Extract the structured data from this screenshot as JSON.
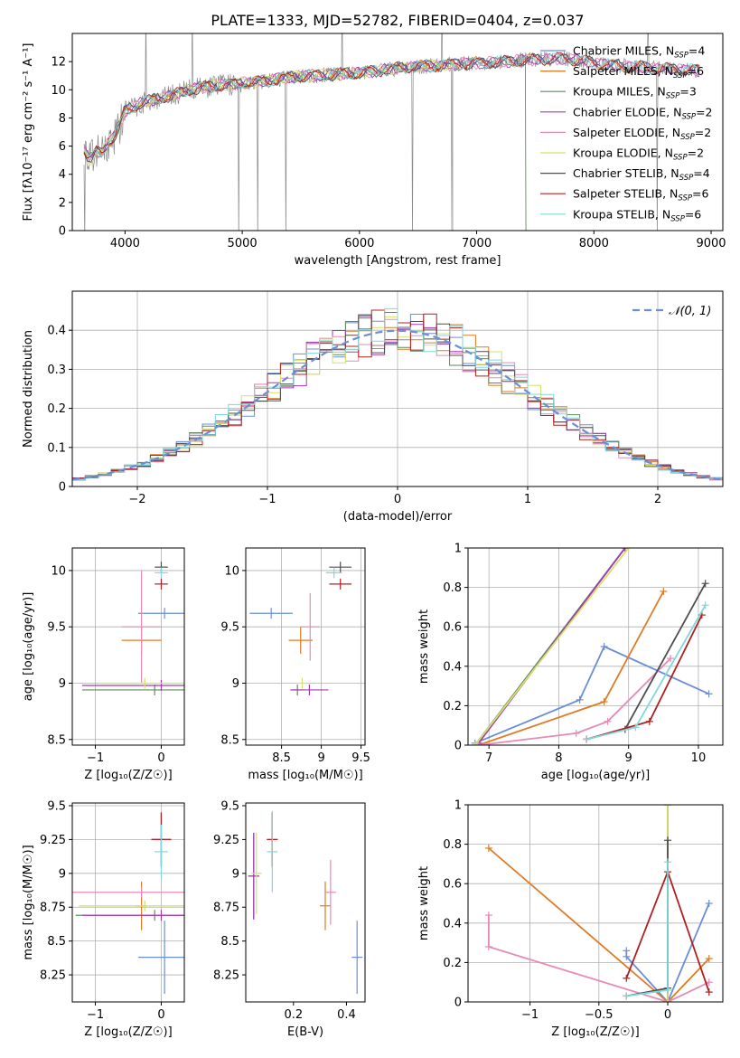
{
  "title": "PLATE=1333, MJD=52782, FIBERID=0404, z=0.037",
  "colors": [
    "#6a8fd8",
    "#e07a24",
    "#5f8a5f",
    "#a43ab0",
    "#e68ab8",
    "#d4e26a",
    "#4f4f4f",
    "#b02020",
    "#7ed8dc",
    "#8a8a8a"
  ],
  "chart_data": [
    {
      "id": "spectrum",
      "type": "line",
      "title": "PLATE=1333, MJD=52782, FIBERID=0404, z=0.037",
      "xlabel": "wavelength [Angstrom, rest frame]",
      "ylabel": "Flux [fλ10⁻¹⁷ erg cm⁻² s⁻¹ A⁻¹]",
      "xlim": [
        3550,
        9100
      ],
      "ylim": [
        0,
        14
      ],
      "xticks": [
        4000,
        5000,
        6000,
        7000,
        8000,
        9000
      ],
      "yticks": [
        0,
        2,
        4,
        6,
        8,
        10,
        12
      ],
      "grid": false,
      "legend_position": "top-right",
      "legend": [
        {
          "label": "Chabrier MILES, N",
          "sub": "SSP",
          "tail": "=4"
        },
        {
          "label": "Salpeter MILES, N",
          "sub": "SSP",
          "tail": "=6"
        },
        {
          "label": "Kroupa MILES, N",
          "sub": "SSP",
          "tail": "=3"
        },
        {
          "label": "Chabrier ELODIE, N",
          "sub": "SSP",
          "tail": "=2"
        },
        {
          "label": "Salpeter ELODIE, N",
          "sub": "SSP",
          "tail": "=2"
        },
        {
          "label": "Kroupa ELODIE, N",
          "sub": "SSP",
          "tail": "=2"
        },
        {
          "label": "Chabrier STELIB, N",
          "sub": "SSP",
          "tail": "=4"
        },
        {
          "label": "Salpeter STELIB, N",
          "sub": "SSP",
          "tail": "=6"
        },
        {
          "label": "Kroupa STELIB, N",
          "sub": "SSP",
          "tail": "=6"
        }
      ],
      "data_series": {
        "name": "data",
        "x": [
          3650,
          3700,
          3750,
          3800,
          3850,
          3900,
          3950,
          4000,
          4100,
          4200,
          4300,
          4400,
          4500,
          4600,
          4800,
          5000,
          5200,
          5400,
          5600,
          5800,
          6000,
          6200,
          6400,
          6600,
          6800,
          7000,
          7200,
          7400,
          7600,
          7800,
          8000,
          8200,
          8400,
          8600,
          8800
        ],
        "y": [
          5.8,
          5.0,
          5.6,
          5.5,
          6.2,
          6.6,
          7.4,
          8.5,
          8.9,
          9.2,
          9.4,
          9.6,
          9.9,
          10.1,
          10.3,
          10.5,
          10.6,
          10.9,
          11.0,
          11.1,
          11.2,
          11.4,
          11.6,
          11.7,
          11.8,
          11.9,
          12.0,
          12.1,
          12.2,
          12.2,
          11.9,
          11.7,
          11.6,
          11.5,
          11.4
        ]
      },
      "model_dropouts": {
        "kroupa_miles_end": 7420,
        "kroupa_elodie_end": 6800
      }
    },
    {
      "id": "residuals",
      "type": "bar",
      "xlabel": "(data-model)/error",
      "ylabel": "Normed distribution",
      "xlim": [
        -2.5,
        2.5
      ],
      "ylim": [
        0,
        0.5
      ],
      "xticks": [
        -2,
        -1,
        0,
        1,
        2
      ],
      "yticks": [
        0.0,
        0.1,
        0.2,
        0.3,
        0.4
      ],
      "grid": true,
      "legend_position": "top-right",
      "reference_label": "𝒩(0, 1)",
      "bin_width": 0.1,
      "bin_start": -2.5
    },
    {
      "id": "Z-age",
      "type": "scatter",
      "xlabel": "Z [log₁₀(Z/Z☉)]",
      "ylabel": "age  [log₁₀(age/yr)]",
      "xlim": [
        -1.35,
        0.35
      ],
      "ylim": [
        8.45,
        10.2
      ],
      "xticks": [
        -1,
        0
      ],
      "yticks": [
        8.5,
        9.0,
        9.5,
        10.0
      ],
      "grid": true,
      "points": [
        {
          "series": 0,
          "x": 0.05,
          "y": 9.62,
          "xerr": 0.4,
          "yerr": 0.0
        },
        {
          "series": 1,
          "x": -0.3,
          "y": 9.38,
          "xerr": 0.3,
          "yerr": 0.12
        },
        {
          "series": 2,
          "x": -0.1,
          "y": 8.94,
          "xerr": 1.1,
          "yerr": 0.0
        },
        {
          "series": 3,
          "x": 0.0,
          "y": 8.98,
          "xerr": 1.2,
          "yerr": 0.0
        },
        {
          "series": 4,
          "x": -0.3,
          "y": 9.5,
          "xerr": 0.3,
          "yerr": 0.5
        },
        {
          "series": 5,
          "x": -0.25,
          "y": 9.0,
          "xerr": 0.7,
          "yerr": 0.0
        },
        {
          "series": 6,
          "x": 0.0,
          "y": 10.03,
          "xerr": 0.1,
          "yerr": 0.0
        },
        {
          "series": 7,
          "x": 0.0,
          "y": 9.88,
          "xerr": 0.1,
          "yerr": 0.0
        },
        {
          "series": 8,
          "x": 0.0,
          "y": 9.98,
          "xerr": 0.1,
          "yerr": 0.0
        }
      ]
    },
    {
      "id": "mass-age",
      "type": "scatter",
      "xlabel": "mass [log₁₀(M/M☉)]",
      "ylabel": "",
      "xlim": [
        8.05,
        9.55
      ],
      "ylim": [
        8.45,
        10.2
      ],
      "xticks": [
        8.5,
        9.0,
        9.5
      ],
      "yticks": [
        8.5,
        9.0,
        9.5,
        10.0
      ],
      "grid": true,
      "points": [
        {
          "series": 0,
          "x": 8.37,
          "y": 9.62,
          "xerr": 0.27,
          "yerr": 0.0
        },
        {
          "series": 1,
          "x": 8.74,
          "y": 9.38,
          "xerr": 0.15,
          "yerr": 0.12
        },
        {
          "series": 2,
          "x": 8.7,
          "y": 8.94,
          "xerr": 0.0,
          "yerr": 0.0
        },
        {
          "series": 3,
          "x": 8.85,
          "y": 8.94,
          "xerr": 0.24,
          "yerr": 0.0
        },
        {
          "series": 4,
          "x": 8.86,
          "y": 9.5,
          "xerr": 0.12,
          "yerr": 0.3
        },
        {
          "series": 5,
          "x": 8.76,
          "y": 9.0,
          "xerr": 0.0,
          "yerr": 0.0
        },
        {
          "series": 6,
          "x": 9.24,
          "y": 10.03,
          "xerr": 0.14,
          "yerr": 0.0
        },
        {
          "series": 7,
          "x": 9.24,
          "y": 9.88,
          "xerr": 0.14,
          "yerr": 0.0
        },
        {
          "series": 8,
          "x": 9.16,
          "y": 9.98,
          "xerr": 0.1,
          "yerr": 0.0
        }
      ]
    },
    {
      "id": "age-weight",
      "type": "line",
      "xlabel": "age  [log₁₀(age/yr)]",
      "ylabel": "mass weight",
      "xlim": [
        6.7,
        10.35
      ],
      "ylim": [
        0,
        1
      ],
      "xticks": [
        7,
        8,
        9,
        10
      ],
      "yticks": [
        0.0,
        0.2,
        0.4,
        0.6,
        0.8,
        1.0
      ],
      "grid": true,
      "series": [
        {
          "series": 0,
          "x": [
            6.8,
            8.3,
            8.65,
            10.15
          ],
          "y": [
            0.01,
            0.23,
            0.5,
            0.26
          ]
        },
        {
          "series": 1,
          "x": [
            6.85,
            8.65,
            9.5
          ],
          "y": [
            0.0,
            0.22,
            0.78
          ]
        },
        {
          "series": 2,
          "x": [
            6.8,
            8.95
          ],
          "y": [
            0.0,
            1.0
          ]
        },
        {
          "series": 3,
          "x": [
            6.85,
            8.95
          ],
          "y": [
            0.01,
            1.0
          ]
        },
        {
          "series": 4,
          "x": [
            6.85,
            8.25,
            8.7,
            9.6
          ],
          "y": [
            0.0,
            0.06,
            0.12,
            0.44
          ]
        },
        {
          "series": 5,
          "x": [
            6.8,
            9.0
          ],
          "y": [
            0.0,
            1.0
          ]
        },
        {
          "series": 6,
          "x": [
            8.4,
            8.95,
            10.1
          ],
          "y": [
            0.03,
            0.08,
            0.82
          ]
        },
        {
          "series": 7,
          "x": [
            8.4,
            9.3,
            10.05
          ],
          "y": [
            0.03,
            0.12,
            0.66
          ]
        },
        {
          "series": 8,
          "x": [
            8.4,
            9.1,
            10.1
          ],
          "y": [
            0.03,
            0.09,
            0.71
          ]
        }
      ]
    },
    {
      "id": "Z-mass",
      "type": "scatter",
      "xlabel": "Z [log₁₀(Z/Z☉)]",
      "ylabel": "mass [log₁₀(M/M☉)]",
      "xlim": [
        -1.35,
        0.35
      ],
      "ylim": [
        8.05,
        9.52
      ],
      "xticks": [
        -1,
        0
      ],
      "yticks": [
        8.25,
        8.5,
        8.75,
        9.0,
        9.25,
        9.5
      ],
      "grid": true,
      "points": [
        {
          "series": 0,
          "x": 0.05,
          "y": 8.38,
          "xerr": 0.4,
          "yerr": 0.27
        },
        {
          "series": 1,
          "x": -0.3,
          "y": 8.76,
          "xerr": 0.0,
          "yerr": 0.18
        },
        {
          "series": 2,
          "x": -0.1,
          "y": 8.69,
          "xerr": 1.2,
          "yerr": 0.0
        },
        {
          "series": 3,
          "x": 0.0,
          "y": 8.69,
          "xerr": 1.2,
          "yerr": 0.0
        },
        {
          "series": 4,
          "x": -0.3,
          "y": 8.86,
          "xerr": 1.1,
          "yerr": 0.0
        },
        {
          "series": 5,
          "x": -0.25,
          "y": 8.76,
          "xerr": 1.0,
          "yerr": 0.0
        },
        {
          "series": 6,
          "x": 0.0,
          "y": 9.25,
          "xerr": 0.15,
          "yerr": 0.2
        },
        {
          "series": 7,
          "x": 0.0,
          "y": 9.25,
          "xerr": 0.15,
          "yerr": 0.2
        },
        {
          "series": 8,
          "x": 0.0,
          "y": 9.16,
          "xerr": 0.1,
          "yerr": 0.2
        }
      ]
    },
    {
      "id": "EBV-mass",
      "type": "scatter",
      "xlabel": "E(B-V)",
      "ylabel": "",
      "xlim": [
        0.02,
        0.47
      ],
      "ylim": [
        8.05,
        9.52
      ],
      "xticks": [
        0.2,
        0.4
      ],
      "yticks": [
        8.25,
        8.5,
        8.75,
        9.0,
        9.25,
        9.5
      ],
      "grid": false,
      "points": [
        {
          "series": 0,
          "x": 0.44,
          "y": 8.38,
          "xerr": 0.0,
          "yerr": 0.27
        },
        {
          "series": 1,
          "x": 0.32,
          "y": 8.76,
          "xerr": 0.0,
          "yerr": 0.18
        },
        {
          "series": 2,
          "x": 0.05,
          "y": 8.98,
          "xerr": 0.0,
          "yerr": 0.32
        },
        {
          "series": 3,
          "x": 0.05,
          "y": 8.98,
          "xerr": 0.0,
          "yerr": 0.32
        },
        {
          "series": 4,
          "x": 0.34,
          "y": 8.86,
          "xerr": 0.0,
          "yerr": 0.24
        },
        {
          "series": 5,
          "x": 0.06,
          "y": 9.0,
          "xerr": 0.0,
          "yerr": 0.3
        },
        {
          "series": 6,
          "x": 0.12,
          "y": 9.25,
          "xerr": 0.0,
          "yerr": 0.2
        },
        {
          "series": 7,
          "x": 0.12,
          "y": 9.25,
          "xerr": 0.0,
          "yerr": 0.2
        },
        {
          "series": 8,
          "x": 0.12,
          "y": 9.16,
          "xerr": 0.0,
          "yerr": 0.3
        }
      ]
    },
    {
      "id": "Z-weight",
      "type": "line",
      "xlabel": "Z [log₁₀(Z/Z☉)]",
      "ylabel": "mass weight",
      "xlim": [
        -1.45,
        0.4
      ],
      "ylim": [
        0,
        1
      ],
      "xticks": [
        -1.0,
        -0.5,
        0.0
      ],
      "yticks": [
        0.0,
        0.2,
        0.4,
        0.6,
        0.8,
        1.0
      ],
      "grid": true,
      "series": [
        {
          "series": 0,
          "x": [
            -0.3,
            -0.3,
            0.0,
            0.3
          ],
          "y": [
            0.26,
            0.23,
            0.0,
            0.5
          ]
        },
        {
          "series": 1,
          "x": [
            -1.3,
            0.0,
            0.3
          ],
          "y": [
            0.78,
            0.0,
            0.22
          ]
        },
        {
          "series": 2,
          "x": [
            0.0,
            0.0
          ],
          "y": [
            0.0,
            1.0
          ]
        },
        {
          "series": 3,
          "x": [
            0.0,
            0.0
          ],
          "y": [
            0.0,
            1.0
          ]
        },
        {
          "series": 4,
          "x": [
            -1.3,
            -1.3,
            0.0,
            0.3
          ],
          "y": [
            0.44,
            0.28,
            0.0,
            0.1
          ]
        },
        {
          "series": 5,
          "x": [
            0.0,
            0.0
          ],
          "y": [
            0.0,
            1.0
          ]
        },
        {
          "series": 6,
          "x": [
            -0.3,
            0.0,
            0.0
          ],
          "y": [
            0.03,
            0.07,
            0.82
          ]
        },
        {
          "series": 7,
          "x": [
            -0.3,
            0.0,
            0.3
          ],
          "y": [
            0.12,
            0.66,
            0.05
          ]
        },
        {
          "series": 8,
          "x": [
            -0.3,
            0.0,
            0.0
          ],
          "y": [
            0.03,
            0.06,
            0.71
          ]
        }
      ]
    }
  ]
}
